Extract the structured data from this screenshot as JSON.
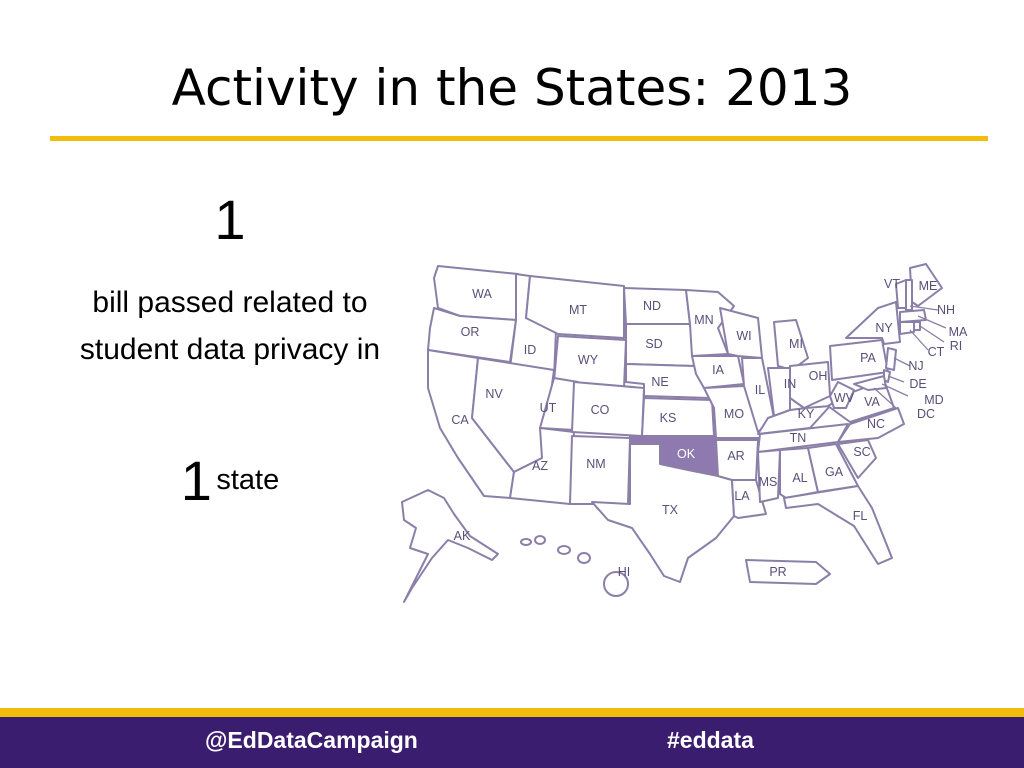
{
  "slide": {
    "title": "Activity in the States: 2013",
    "bills_count": "1",
    "bills_text": "bill passed related to student data privacy in",
    "state_count": "1",
    "state_word": "state"
  },
  "map": {
    "highlighted_states": [
      "OK"
    ],
    "highlight_color": "#8f7ab0",
    "outline_color": "#8b7fa8",
    "state_labels": [
      "WA",
      "OR",
      "CA",
      "ID",
      "NV",
      "MT",
      "WY",
      "UT",
      "AZ",
      "CO",
      "NM",
      "ND",
      "SD",
      "NE",
      "KS",
      "OK",
      "TX",
      "MN",
      "IA",
      "MO",
      "AR",
      "LA",
      "WI",
      "IL",
      "MI",
      "IN",
      "OH",
      "KY",
      "TN",
      "MS",
      "AL",
      "GA",
      "FL",
      "SC",
      "NC",
      "VA",
      "WV",
      "PA",
      "NY",
      "VT",
      "ME",
      "NH",
      "MA",
      "RI",
      "CT",
      "NJ",
      "DE",
      "MD",
      "DC",
      "AK",
      "HI",
      "PR"
    ]
  },
  "footer": {
    "handle": "@EdDataCampaign",
    "hashtag": "#eddata"
  },
  "colors": {
    "accent_gold": "#f2bc0b",
    "footer_purple": "#3a1d6e"
  }
}
